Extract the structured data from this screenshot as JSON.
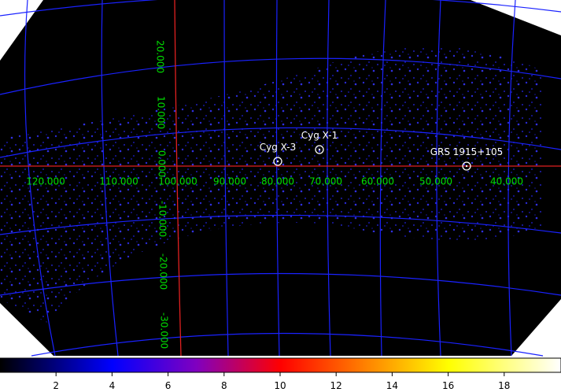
{
  "grid_labels": {
    "longitude": [
      "120.000",
      "110.000",
      "100.000",
      "90.000",
      "80.000",
      "70.000",
      "60.000",
      "50.000",
      "40.000"
    ],
    "latitude": [
      "20.000",
      "10.000",
      "0.000",
      "-10.000",
      "-20.000",
      "-30.000"
    ]
  },
  "sources": [
    {
      "label": "Cyg X-3"
    },
    {
      "label": "Cyg X-1"
    },
    {
      "label": "GRS 1915+105"
    }
  ],
  "colorbar": {
    "range": [
      0,
      20
    ],
    "ticks": [
      2,
      4,
      6,
      8,
      10,
      12,
      14,
      16,
      18
    ]
  }
}
